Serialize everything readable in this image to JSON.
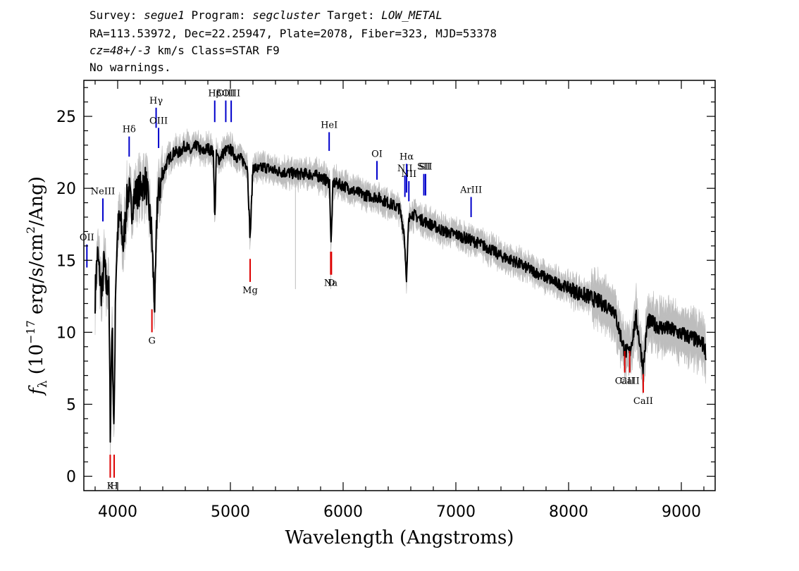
{
  "header": {
    "survey_label": "Survey:",
    "survey": "segue1",
    "program_label": "Program:",
    "program": "segcluster",
    "target_label": "Target:",
    "target": "LOW_METAL",
    "line2": "RA=113.53972, Dec=22.25947, Plate=2078, Fiber=323, MJD=53378",
    "cz": "cz=48+/-3",
    "line3_rest": " km/s Class=STAR F9",
    "line4": "No warnings."
  },
  "colors": {
    "flux": "#000000",
    "error": "#bdbdbd",
    "emission": "#0000cc",
    "absorption": "#dd0000",
    "ticks": "#000000"
  },
  "chart_data": {
    "type": "line",
    "xlabel": "Wavelength (Angstroms)",
    "ylabel": "f_λ (10^-17 erg/s/cm^2/Ang)",
    "xlim": [
      3700,
      9300
    ],
    "ylim": [
      -1,
      27.5
    ],
    "xticks": [
      4000,
      5000,
      6000,
      7000,
      8000,
      9000
    ],
    "yticks": [
      0,
      5,
      10,
      15,
      20,
      25
    ],
    "grid": false,
    "series": [
      {
        "x": [
          3800,
          3820,
          3840,
          3860,
          3880,
          3900,
          3920,
          3935,
          3950,
          3968,
          3980,
          4000,
          4020,
          4050,
          4080,
          4100,
          4120,
          4150,
          4200,
          4250,
          4300,
          4330,
          4350,
          4400,
          4450,
          4500,
          4550,
          4600,
          4650,
          4700,
          4750,
          4800,
          4850,
          4861,
          4875,
          4900,
          4950,
          5000,
          5050,
          5100,
          5150,
          5175,
          5200,
          5250,
          5300,
          5400,
          5500,
          5600,
          5700,
          5800,
          5880,
          5893,
          5910,
          6000,
          6100,
          6200,
          6300,
          6400,
          6500,
          6540,
          6563,
          6580,
          6600,
          6700,
          6800,
          6900,
          7000,
          7100,
          7200,
          7300,
          7400,
          7500,
          7600,
          7700,
          7800,
          7900,
          8000,
          8100,
          8200,
          8300,
          8400,
          8498,
          8542,
          8600,
          8662,
          8700,
          8800,
          8900,
          9000,
          9100,
          9200,
          9220
        ],
        "y": [
          12.5,
          15.5,
          14,
          12.5,
          15,
          13,
          14,
          3,
          11,
          2.5,
          13,
          17,
          18,
          16,
          19,
          20,
          18.5,
          19.5,
          20,
          20.5,
          17,
          11.5,
          19,
          21,
          22,
          22.5,
          22.5,
          23,
          22.5,
          23,
          22.5,
          22.8,
          22.5,
          17.5,
          22.3,
          22,
          22.6,
          22.7,
          22.2,
          22,
          21.6,
          16.5,
          21.5,
          21.3,
          21.5,
          21.2,
          21.1,
          21,
          21,
          20.8,
          20.4,
          16,
          20.4,
          20.2,
          19.8,
          19.5,
          19.4,
          19,
          18.6,
          17,
          13.7,
          17.5,
          18.3,
          17.8,
          17.4,
          17,
          16.8,
          16.5,
          16.2,
          15.8,
          15.3,
          15,
          14.6,
          14.2,
          13.8,
          13.4,
          13.1,
          12.7,
          12.4,
          12,
          11.6,
          8.7,
          8.6,
          11,
          7.5,
          10.8,
          10.4,
          10.2,
          9.9,
          9.6,
          9.1,
          8.5
        ]
      }
    ],
    "emission_lines": [
      {
        "label": "OII",
        "lambda": 3727,
        "y": 14.5,
        "len": 1.6
      },
      {
        "label": "NeIII",
        "lambda": 3869,
        "y": 17.7,
        "len": 1.6
      },
      {
        "label": "Hδ",
        "lambda": 4102,
        "y": 22.2,
        "len": 1.4
      },
      {
        "label": "Hγ",
        "lambda": 4341,
        "y": 24.2,
        "len": 1.4
      },
      {
        "label": "OIII",
        "lambda": 4363,
        "y": 22.8,
        "len": 1.4
      },
      {
        "label": "Hβ",
        "lambda": 4861,
        "y": 24.6,
        "len": 1.5
      },
      {
        "label": "OIII",
        "lambda": 4959,
        "y": 24.6,
        "len": 1.5
      },
      {
        "label": "OIII",
        "lambda": 5007,
        "y": 24.6,
        "len": 1.5
      },
      {
        "label": "HeI",
        "lambda": 5876,
        "y": 22.6,
        "len": 1.3
      },
      {
        "label": "OI",
        "lambda": 6300,
        "y": 20.6,
        "len": 1.3
      },
      {
        "label": "NII",
        "lambda": 6548,
        "y": 19.4,
        "len": 1.5
      },
      {
        "label": "Hα",
        "lambda": 6563,
        "y": 19.7,
        "len": 2.0
      },
      {
        "label": "NII",
        "lambda": 6583,
        "y": 19.1,
        "len": 1.4
      },
      {
        "label": "SII",
        "lambda": 6716,
        "y": 19.5,
        "len": 1.5
      },
      {
        "label": "SII",
        "lambda": 6731,
        "y": 19.5,
        "len": 1.5
      },
      {
        "label": "ArIII",
        "lambda": 7135,
        "y": 18.0,
        "len": 1.4
      }
    ],
    "absorption_lines": [
      {
        "label": "K",
        "lambda": 3934,
        "y": -0.1,
        "len": 1.6
      },
      {
        "label": "H",
        "lambda": 3969,
        "y": -0.1,
        "len": 1.6
      },
      {
        "label": "G",
        "lambda": 4304,
        "y": 10.0,
        "len": 1.6
      },
      {
        "label": "Mg",
        "lambda": 5175,
        "y": 13.5,
        "len": 1.6
      },
      {
        "label": "Na",
        "lambda": 5890,
        "y": 14.0,
        "len": 1.6
      },
      {
        "label": "D",
        "lambda": 5896,
        "y": 14.0,
        "len": 1.6
      },
      {
        "label": "CaII",
        "lambda": 8498,
        "y": 7.2,
        "len": 1.5
      },
      {
        "label": "CaII",
        "lambda": 8542,
        "y": 7.2,
        "len": 1.5
      },
      {
        "label": "CaII",
        "lambda": 8662,
        "y": 5.8,
        "len": 1.3
      }
    ]
  }
}
